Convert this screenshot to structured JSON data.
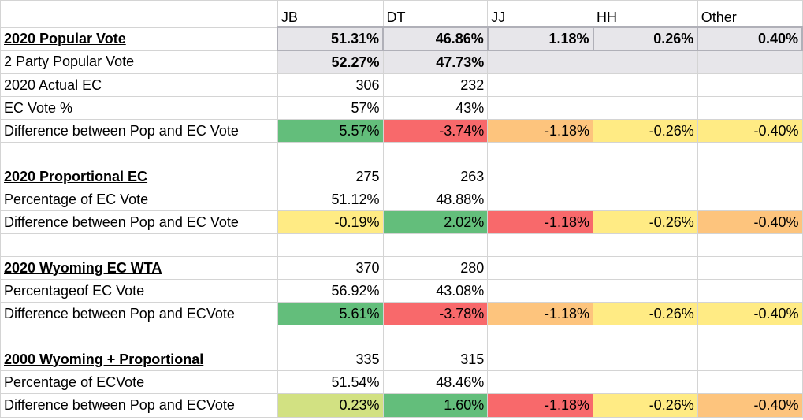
{
  "headers": [
    "",
    "JB",
    "DT",
    "JJ",
    "HH",
    "Other"
  ],
  "rows": [
    {
      "label": "2020 Popular Vote",
      "section": true,
      "values": [
        "51.31%",
        "46.86%",
        "1.18%",
        "0.26%",
        "0.40%"
      ]
    },
    {
      "label": "2 Party Popular Vote",
      "values": [
        "52.27%",
        "47.73%",
        "",
        "",
        ""
      ]
    },
    {
      "label": "2020 Actual EC",
      "values": [
        "306",
        "232",
        "",
        "",
        ""
      ]
    },
    {
      "label": "EC Vote %",
      "values": [
        "57%",
        "43%",
        "",
        "",
        ""
      ]
    },
    {
      "label": "Difference between Pop and EC Vote",
      "values": [
        "5.57%",
        "-3.74%",
        "-1.18%",
        "-0.26%",
        "-0.40%"
      ]
    },
    {
      "label": "",
      "values": [
        "",
        "",
        "",
        "",
        ""
      ]
    },
    {
      "label": "2020 Proportional EC",
      "section": true,
      "values": [
        "275",
        "263",
        "",
        "",
        ""
      ]
    },
    {
      "label": "Percentage of EC Vote",
      "values": [
        "51.12%",
        "48.88%",
        "",
        "",
        ""
      ]
    },
    {
      "label": "Difference between Pop and EC Vote",
      "values": [
        "-0.19%",
        "2.02%",
        "-1.18%",
        "-0.26%",
        "-0.40%"
      ]
    },
    {
      "label": "",
      "values": [
        "",
        "",
        "",
        "",
        ""
      ]
    },
    {
      "label": "2020 Wyoming EC WTA",
      "section": true,
      "values": [
        "370",
        "280",
        "",
        "",
        ""
      ]
    },
    {
      "label": "Percentageof EC Vote",
      "values": [
        "56.92%",
        "43.08%",
        "",
        "",
        ""
      ]
    },
    {
      "label": "Difference between Pop and ECVote",
      "values": [
        "5.61%",
        "-3.78%",
        "-1.18%",
        "-0.26%",
        "-0.40%"
      ]
    },
    {
      "label": "",
      "values": [
        "",
        "",
        "",
        "",
        ""
      ]
    },
    {
      "label": "2000 Wyoming + Proportional",
      "section": true,
      "values": [
        "335",
        "315",
        "",
        "",
        ""
      ]
    },
    {
      "label": "Percentage of ECVote",
      "values": [
        "51.54%",
        "48.46%",
        "",
        "",
        ""
      ]
    },
    {
      "label": "Difference between Pop and ECVote",
      "values": [
        "0.23%",
        "1.60%",
        "-1.18%",
        "-0.26%",
        "-0.40%"
      ]
    }
  ],
  "cell_colors": {
    "green": "#63be7b",
    "red": "#f8696b",
    "orange": "#fdc47d",
    "yellow": "#ffeb84",
    "lime": "#d2e182",
    "light_red": "#f98d70",
    "gray_highlight": "#e7e6ea",
    "gridline": "#d4d4d4"
  }
}
